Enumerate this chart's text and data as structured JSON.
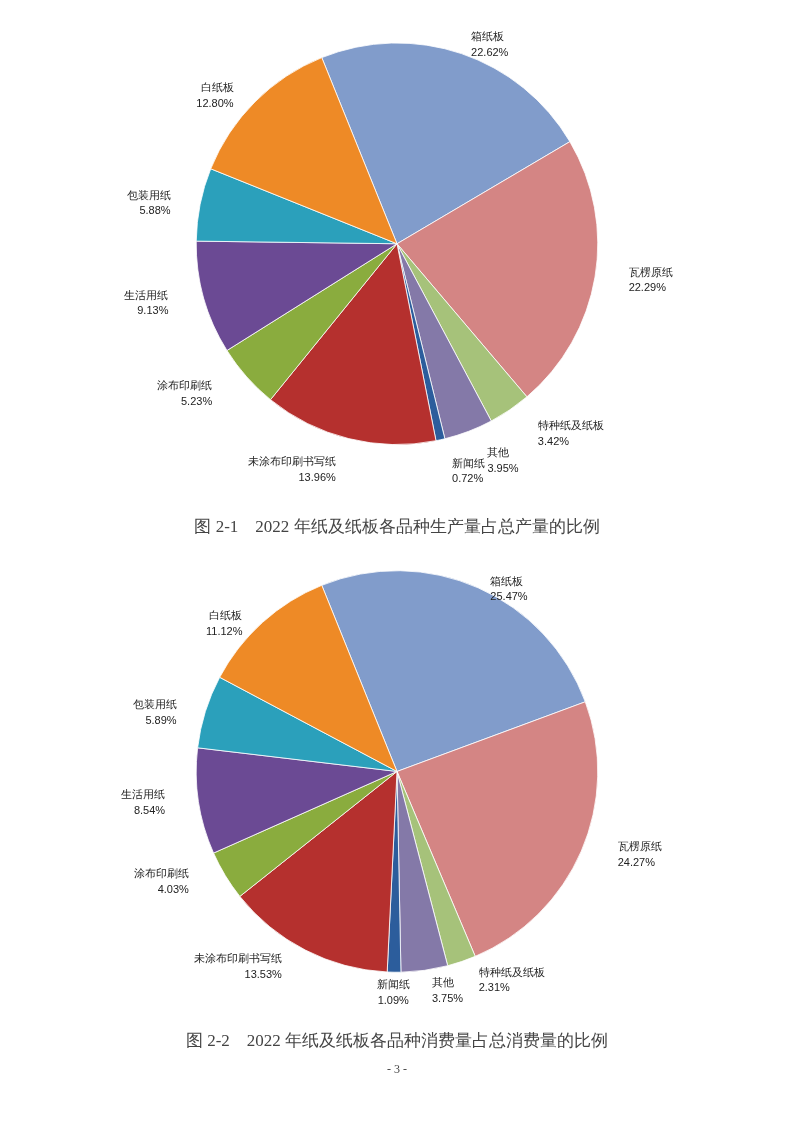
{
  "chart_data": [
    {
      "type": "pie",
      "title": "图 2-1　2022 年纸及纸板各品种生产量占总产量的比例",
      "categories": [
        "箱纸板",
        "瓦楞原纸",
        "特种纸及纸板",
        "其他",
        "新闻纸",
        "未涂布印刷书写纸",
        "涂布印刷纸",
        "生活用纸",
        "包装用纸",
        "白纸板"
      ],
      "values": [
        22.62,
        22.29,
        3.42,
        3.95,
        0.72,
        13.96,
        5.23,
        9.13,
        5.88,
        12.8
      ],
      "value_labels": [
        "22.62%",
        "22.29%",
        "3.42%",
        "3.95%",
        "0.72%",
        "13.96%",
        "5.23%",
        "9.13%",
        "5.88%",
        "12.80%"
      ],
      "colors": [
        "#819ccb",
        "#d48584",
        "#a6c27a",
        "#8479a8",
        "#2c5d9c",
        "#b5302e",
        "#8aac3e",
        "#6b4a94",
        "#2ba0bb",
        "#ee8a26"
      ]
    },
    {
      "type": "pie",
      "title": "图 2-2　2022 年纸及纸板各品种消费量占总消费量的比例",
      "categories": [
        "箱纸板",
        "瓦楞原纸",
        "特种纸及纸板",
        "其他",
        "新闻纸",
        "未涂布印刷书写纸",
        "涂布印刷纸",
        "生活用纸",
        "包装用纸",
        "白纸板"
      ],
      "values": [
        25.47,
        24.27,
        2.31,
        3.75,
        1.09,
        13.53,
        4.03,
        8.54,
        5.89,
        11.12
      ],
      "value_labels": [
        "25.47%",
        "24.27%",
        "2.31%",
        "3.75%",
        "1.09%",
        "13.53%",
        "4.03%",
        "8.54%",
        "5.89%",
        "11.12%"
      ],
      "colors": [
        "#819ccb",
        "#d48584",
        "#a6c27a",
        "#8479a8",
        "#2c5d9c",
        "#b5302e",
        "#8aac3e",
        "#6b4a94",
        "#2ba0bb",
        "#ee8a26"
      ],
      "annotations": [
        "- 3 -"
      ]
    }
  ]
}
